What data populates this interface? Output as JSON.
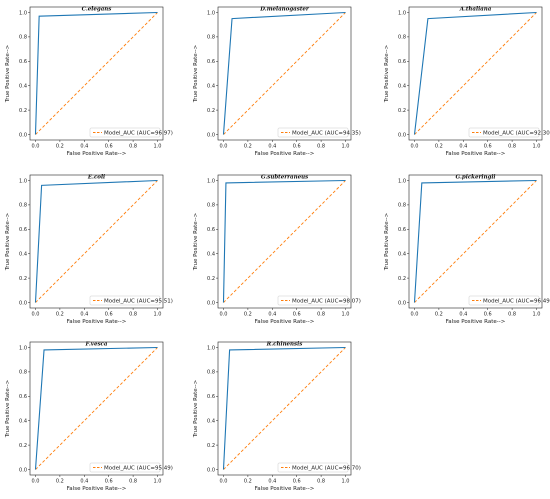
{
  "colors": {
    "roc": "#1f77b4",
    "diagonal": "#ff7f0e",
    "frame": "#222222"
  },
  "chart_data": [
    {
      "type": "line",
      "title": "C.elegans",
      "xlabel": "False Positive Rate-->",
      "ylabel": "True Positive Rate-->",
      "xlim": [
        0.0,
        1.0
      ],
      "ylim": [
        0.0,
        1.0
      ],
      "x_ticks": [
        "0.0",
        "0.2",
        "0.4",
        "0.6",
        "0.8",
        "1.0"
      ],
      "y_ticks": [
        "0.0",
        "0.2",
        "0.4",
        "0.6",
        "0.8",
        "1.0"
      ],
      "legend": "Model_AUC (AUC=96.97)",
      "legend_position": "lower right",
      "series": [
        {
          "x": [
            0.0,
            0.03,
            1.0
          ],
          "y": [
            0.0,
            0.97,
            1.0
          ]
        },
        {
          "x": [
            0.0,
            1.0
          ],
          "y": [
            0.0,
            1.0
          ]
        }
      ]
    },
    {
      "type": "line",
      "title": "D.melanogaster",
      "xlabel": "False Positive Rate-->",
      "ylabel": "True Positive Rate-->",
      "xlim": [
        0.0,
        1.0
      ],
      "ylim": [
        0.0,
        1.0
      ],
      "x_ticks": [
        "0.0",
        "0.2",
        "0.4",
        "0.6",
        "0.8",
        "1.0"
      ],
      "y_ticks": [
        "0.0",
        "0.2",
        "0.4",
        "0.6",
        "0.8",
        "1.0"
      ],
      "legend": "Model_AUC (AUC=94.35)",
      "legend_position": "lower right",
      "series": [
        {
          "x": [
            0.0,
            0.07,
            1.0
          ],
          "y": [
            0.0,
            0.95,
            1.0
          ]
        },
        {
          "x": [
            0.0,
            1.0
          ],
          "y": [
            0.0,
            1.0
          ]
        }
      ]
    },
    {
      "type": "line",
      "title": "A.thaliana",
      "xlabel": "False Positive Rate-->",
      "ylabel": "True Positive Rate-->",
      "xlim": [
        0.0,
        1.0
      ],
      "ylim": [
        0.0,
        1.0
      ],
      "x_ticks": [
        "0.0",
        "0.2",
        "0.4",
        "0.6",
        "0.8",
        "1.0"
      ],
      "y_ticks": [
        "0.0",
        "0.2",
        "0.4",
        "0.6",
        "0.8",
        "1.0"
      ],
      "legend": "Model_AUC (AUC=92.30)",
      "legend_position": "lower right",
      "series": [
        {
          "x": [
            0.0,
            0.11,
            1.0
          ],
          "y": [
            0.0,
            0.95,
            1.0
          ]
        },
        {
          "x": [
            0.0,
            1.0
          ],
          "y": [
            0.0,
            1.0
          ]
        }
      ]
    },
    {
      "type": "line",
      "title": "E.coli",
      "xlabel": "False Positive Rate-->",
      "ylabel": "True Positive Rate-->",
      "xlim": [
        0.0,
        1.0
      ],
      "ylim": [
        0.0,
        1.0
      ],
      "x_ticks": [
        "0.0",
        "0.2",
        "0.4",
        "0.6",
        "0.8",
        "1.0"
      ],
      "y_ticks": [
        "0.0",
        "0.2",
        "0.4",
        "0.6",
        "0.8",
        "1.0"
      ],
      "legend": "Model_AUC (AUC=95.51)",
      "legend_position": "lower right",
      "series": [
        {
          "x": [
            0.0,
            0.05,
            1.0
          ],
          "y": [
            0.0,
            0.96,
            1.0
          ]
        },
        {
          "x": [
            0.0,
            1.0
          ],
          "y": [
            0.0,
            1.0
          ]
        }
      ]
    },
    {
      "type": "line",
      "title": "G.subterraneus",
      "xlabel": "False Positive Rate-->",
      "ylabel": "True Positive Rate-->",
      "xlim": [
        0.0,
        1.0
      ],
      "ylim": [
        0.0,
        1.0
      ],
      "x_ticks": [
        "0.0",
        "0.2",
        "0.4",
        "0.6",
        "0.8",
        "1.0"
      ],
      "y_ticks": [
        "0.0",
        "0.2",
        "0.4",
        "0.6",
        "0.8",
        "1.0"
      ],
      "legend": "Model_AUC (AUC=98.07)",
      "legend_position": "lower right",
      "series": [
        {
          "x": [
            0.0,
            0.02,
            1.0
          ],
          "y": [
            0.0,
            0.98,
            1.0
          ]
        },
        {
          "x": [
            0.0,
            1.0
          ],
          "y": [
            0.0,
            1.0
          ]
        }
      ]
    },
    {
      "type": "line",
      "title": "G.pickeringii",
      "xlabel": "False Positive Rate-->",
      "ylabel": "True Positive Rate-->",
      "xlim": [
        0.0,
        1.0
      ],
      "ylim": [
        0.0,
        1.0
      ],
      "x_ticks": [
        "0.0",
        "0.2",
        "0.4",
        "0.6",
        "0.8",
        "1.0"
      ],
      "y_ticks": [
        "0.0",
        "0.2",
        "0.4",
        "0.6",
        "0.8",
        "1.0"
      ],
      "legend": "Model_AUC (AUC=96.49)",
      "legend_position": "lower right",
      "series": [
        {
          "x": [
            0.0,
            0.06,
            1.0
          ],
          "y": [
            0.0,
            0.98,
            1.0
          ]
        },
        {
          "x": [
            0.0,
            1.0
          ],
          "y": [
            0.0,
            1.0
          ]
        }
      ]
    },
    {
      "type": "line",
      "title": "F.vesca",
      "xlabel": "False Positive Rate-->",
      "ylabel": "True Positive Rate-->",
      "xlim": [
        0.0,
        1.0
      ],
      "ylim": [
        0.0,
        1.0
      ],
      "x_ticks": [
        "0.0",
        "0.2",
        "0.4",
        "0.6",
        "0.8",
        "1.0"
      ],
      "y_ticks": [
        "0.0",
        "0.2",
        "0.4",
        "0.6",
        "0.8",
        "1.0"
      ],
      "legend": "Model_AUC (AUC=95.49)",
      "legend_position": "lower right",
      "series": [
        {
          "x": [
            0.0,
            0.07,
            1.0
          ],
          "y": [
            0.0,
            0.98,
            1.0
          ]
        },
        {
          "x": [
            0.0,
            1.0
          ],
          "y": [
            0.0,
            1.0
          ]
        }
      ]
    },
    {
      "type": "line",
      "title": "R.chinensis",
      "xlabel": "False Positive Rate-->",
      "ylabel": "True Positive Rate-->",
      "xlim": [
        0.0,
        1.0
      ],
      "ylim": [
        0.0,
        1.0
      ],
      "x_ticks": [
        "0.0",
        "0.2",
        "0.4",
        "0.6",
        "0.8",
        "1.0"
      ],
      "y_ticks": [
        "0.0",
        "0.2",
        "0.4",
        "0.6",
        "0.8",
        "1.0"
      ],
      "legend": "Model_AUC (AUC=96.70)",
      "legend_position": "lower right",
      "series": [
        {
          "x": [
            0.0,
            0.05,
            1.0
          ],
          "y": [
            0.0,
            0.98,
            1.0
          ]
        },
        {
          "x": [
            0.0,
            1.0
          ],
          "y": [
            0.0,
            1.0
          ]
        }
      ]
    }
  ]
}
